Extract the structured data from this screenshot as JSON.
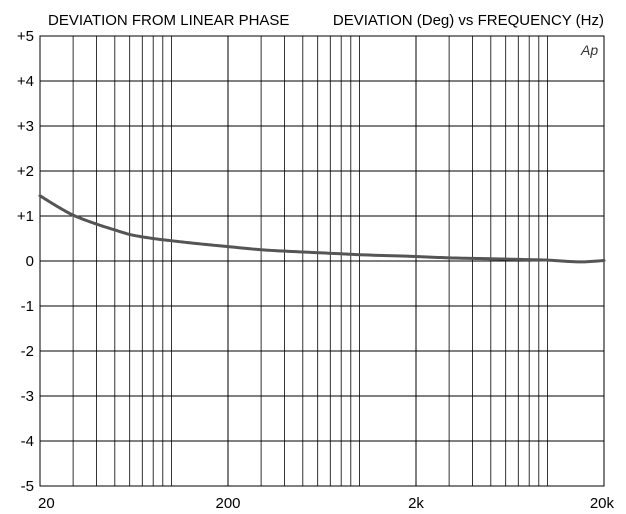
{
  "chart_data": {
    "type": "line",
    "title_left": "DEVIATION FROM LINEAR PHASE",
    "title_right": "DEVIATION (Deg) vs FREQUENCY (Hz)",
    "watermark": "Ap",
    "x_scale": "log",
    "xlim": [
      20,
      20000
    ],
    "ylim": [
      -5,
      5
    ],
    "grid": true,
    "x_ticks": [
      {
        "value": 20,
        "label": "20"
      },
      {
        "value": 200,
        "label": "200"
      },
      {
        "value": 2000,
        "label": "2k"
      },
      {
        "value": 20000,
        "label": "20k"
      }
    ],
    "y_ticks": [
      {
        "value": 5,
        "label": "+5"
      },
      {
        "value": 4,
        "label": "+4"
      },
      {
        "value": 3,
        "label": "+3"
      },
      {
        "value": 2,
        "label": "+2"
      },
      {
        "value": 1,
        "label": "+1"
      },
      {
        "value": 0,
        "label": "0"
      },
      {
        "value": -1,
        "label": "-1"
      },
      {
        "value": -2,
        "label": "-2"
      },
      {
        "value": -3,
        "label": "-3"
      },
      {
        "value": -4,
        "label": "-4"
      },
      {
        "value": -5,
        "label": "-5"
      }
    ],
    "series": [
      {
        "color": "#555555",
        "x": [
          20,
          25,
          30,
          40,
          50,
          60,
          80,
          100,
          150,
          200,
          300,
          500,
          800,
          1000,
          2000,
          3000,
          5000,
          8000,
          10000,
          15000,
          20000
        ],
        "y": [
          1.45,
          1.2,
          1.02,
          0.82,
          0.69,
          0.59,
          0.5,
          0.45,
          0.37,
          0.32,
          0.25,
          0.2,
          0.16,
          0.14,
          0.1,
          0.07,
          0.05,
          0.03,
          0.02,
          -0.02,
          0.01
        ]
      }
    ]
  }
}
